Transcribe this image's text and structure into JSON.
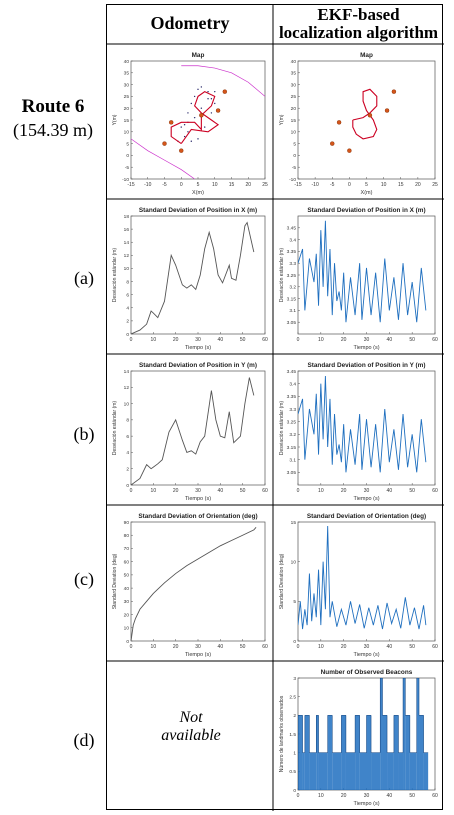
{
  "headers": {
    "col1": "Odometry",
    "col2_line1": "EKF-based",
    "col2_line2": "localization algorithm"
  },
  "route": {
    "title": "Route 6",
    "length": "(154.39 m)"
  },
  "row_labels": [
    "(a)",
    "(b)",
    "(c)",
    "(d)"
  ],
  "not_available": {
    "line1": "Not",
    "line2": "available"
  },
  "colors": {
    "odometry_line": "#555555",
    "ekf_line": "#1f6fbf",
    "path": "#cc0022",
    "beacon": "#d4551a",
    "boundary": "#cc33cc",
    "axes": "#555555"
  },
  "chart_data": [
    {
      "id": "odo-map",
      "type": "scatter",
      "title": "Map",
      "xlabel": "X(m)",
      "ylabel": "Y(m)",
      "xlim": [
        -15,
        25
      ],
      "ylim": [
        -10,
        40
      ],
      "xticks": [
        "-15",
        "-10",
        "-5",
        "0",
        "5",
        "10",
        "15",
        "20",
        "25"
      ],
      "yticks": [
        "-10",
        "-5",
        "0",
        "5",
        "10",
        "15",
        "20",
        "25",
        "30",
        "35",
        "40"
      ],
      "beacons": [
        [
          -3,
          14
        ],
        [
          -5,
          5
        ],
        [
          0,
          2
        ],
        [
          6,
          17
        ],
        [
          11,
          19
        ],
        [
          13,
          27
        ]
      ],
      "path": [
        [
          0,
          5
        ],
        [
          -3,
          8
        ],
        [
          -3,
          12
        ],
        [
          0,
          14
        ],
        [
          4,
          14
        ],
        [
          6,
          11
        ],
        [
          6,
          17
        ],
        [
          9,
          21
        ],
        [
          10,
          25
        ],
        [
          7,
          27
        ],
        [
          5,
          25
        ],
        [
          4,
          21
        ],
        [
          6,
          18
        ],
        [
          9,
          15
        ],
        [
          11,
          13
        ],
        [
          8,
          10
        ],
        [
          3,
          11
        ],
        [
          0,
          5
        ]
      ],
      "dots": [
        [
          1,
          13
        ],
        [
          2,
          18
        ],
        [
          3,
          22
        ],
        [
          4,
          25
        ],
        [
          5,
          28
        ],
        [
          6,
          29
        ],
        [
          8,
          27
        ],
        [
          9,
          24
        ],
        [
          2,
          10
        ],
        [
          1,
          8
        ],
        [
          3,
          6
        ],
        [
          5,
          7
        ],
        [
          7,
          12
        ],
        [
          9,
          18
        ],
        [
          10,
          22
        ],
        [
          -1,
          6
        ],
        [
          0,
          12
        ],
        [
          2,
          14
        ],
        [
          4,
          16
        ],
        [
          6,
          20
        ],
        [
          8,
          24
        ],
        [
          10,
          27
        ]
      ],
      "boundary": [
        [
          [
            -15,
            7
          ],
          [
            -10,
            2
          ],
          [
            -5,
            -2
          ],
          [
            0,
            -6
          ],
          [
            4,
            -10
          ]
        ],
        [
          [
            0,
            38
          ],
          [
            5,
            38
          ],
          [
            10,
            37
          ],
          [
            15,
            35
          ],
          [
            20,
            31
          ],
          [
            25,
            25
          ]
        ]
      ]
    },
    {
      "id": "ekf-map",
      "type": "scatter",
      "title": "Map",
      "xlabel": "X(m)",
      "ylabel": "Y(m)",
      "xlim": [
        -15,
        25
      ],
      "ylim": [
        -10,
        40
      ],
      "xticks": [
        "-15",
        "-10",
        "-5",
        "0",
        "5",
        "10",
        "15",
        "20",
        "25"
      ],
      "yticks": [
        "-10",
        "-5",
        "0",
        "5",
        "10",
        "15",
        "20",
        "25",
        "30",
        "35",
        "40"
      ],
      "beacons": [
        [
          -3,
          14
        ],
        [
          -5,
          5
        ],
        [
          0,
          2
        ],
        [
          6,
          17
        ],
        [
          11,
          19
        ],
        [
          13,
          27
        ]
      ],
      "path": [
        [
          1,
          15
        ],
        [
          4,
          16
        ],
        [
          6,
          18
        ],
        [
          8,
          21
        ],
        [
          8,
          25
        ],
        [
          6,
          28
        ],
        [
          4,
          27
        ],
        [
          4,
          23
        ],
        [
          5,
          19
        ],
        [
          7,
          15
        ],
        [
          8,
          11
        ],
        [
          7,
          8
        ],
        [
          4,
          7
        ],
        [
          2,
          9
        ],
        [
          1,
          12
        ],
        [
          1,
          15
        ]
      ]
    },
    {
      "id": "odo-x",
      "type": "line",
      "title": "Standard Deviation of Position in X (m)",
      "xlabel": "Tiempo (s)",
      "ylabel": "Desviación estándar (m)",
      "xlim": [
        0,
        60
      ],
      "ylim": [
        0,
        18
      ],
      "xticks": [
        "0",
        "10",
        "20",
        "30",
        "40",
        "50",
        "60"
      ],
      "yticks": [
        "0",
        "2",
        "4",
        "6",
        "8",
        "10",
        "12",
        "14",
        "16",
        "18"
      ],
      "x": [
        0,
        4,
        7,
        9,
        10,
        12,
        15,
        18,
        20,
        23,
        25,
        27,
        29,
        31,
        33,
        35,
        37,
        39,
        41,
        44,
        45,
        47,
        49,
        51,
        52,
        54,
        55
      ],
      "values": [
        0,
        0.6,
        1.5,
        3.5,
        3.2,
        2.5,
        5,
        12,
        10.5,
        7.5,
        7,
        7.5,
        6.8,
        9,
        13,
        15.5,
        13,
        9,
        7.8,
        10.5,
        8.5,
        8.2,
        12,
        16.5,
        17,
        14,
        12.5
      ]
    },
    {
      "id": "ekf-x",
      "type": "line",
      "title": "Standard Deviation of Position in X (m)",
      "xlabel": "Tiempo (s)",
      "ylabel": "Desviación estándar (m)",
      "xlim": [
        0,
        60
      ],
      "ylim": [
        3,
        3.5
      ],
      "xticks": [
        "0",
        "10",
        "20",
        "30",
        "40",
        "50",
        "60"
      ],
      "yticks": [
        "3.05",
        "3.1",
        "3.15",
        "3.2",
        "3.25",
        "3.3",
        "3.35",
        "3.4",
        "3.45"
      ],
      "x": [
        0,
        2,
        3,
        5,
        7,
        8,
        9,
        10,
        11,
        12,
        13,
        14,
        15,
        16,
        17,
        18,
        19,
        20,
        21,
        23,
        25,
        27,
        28,
        30,
        32,
        34,
        36,
        38,
        40,
        42,
        44,
        46,
        48,
        50,
        52,
        54,
        56
      ],
      "values": [
        3.3,
        3.36,
        3.1,
        3.32,
        3.22,
        3.34,
        3.12,
        3.44,
        3.2,
        3.48,
        3.16,
        3.36,
        3.08,
        3.3,
        3.14,
        3.18,
        3.1,
        3.26,
        3.05,
        3.24,
        3.08,
        3.3,
        3.06,
        3.28,
        3.08,
        3.26,
        3.05,
        3.32,
        3.1,
        3.24,
        3.06,
        3.3,
        3.08,
        3.22,
        3.05,
        3.28,
        3.1
      ]
    },
    {
      "id": "odo-y",
      "type": "line",
      "title": "Standard Deviation of Position in Y (m)",
      "xlabel": "Tiempo (s)",
      "ylabel": "Desviación estándar (m)",
      "xlim": [
        0,
        60
      ],
      "ylim": [
        0,
        14
      ],
      "xticks": [
        "0",
        "10",
        "20",
        "30",
        "40",
        "50",
        "60"
      ],
      "yticks": [
        "0",
        "2",
        "4",
        "6",
        "8",
        "10",
        "12",
        "14"
      ],
      "x": [
        0,
        4,
        7,
        9,
        10,
        12,
        14,
        17,
        20,
        23,
        25,
        27,
        29,
        31,
        33,
        36,
        38,
        40,
        42,
        44,
        46,
        49,
        51,
        53,
        55
      ],
      "values": [
        0,
        0.8,
        2.5,
        2,
        2.2,
        2.6,
        3.1,
        6.5,
        8,
        5.5,
        4,
        4.2,
        3.8,
        5.3,
        6,
        11.6,
        8,
        6,
        5.8,
        9,
        5.2,
        6,
        10,
        13.2,
        11
      ]
    },
    {
      "id": "ekf-y",
      "type": "line",
      "title": "Standard Deviation of Position in Y (m)",
      "xlabel": "Tiempo (s)",
      "ylabel": "Desviación estándar (m)",
      "xlim": [
        0,
        60
      ],
      "ylim": [
        3,
        3.45
      ],
      "xticks": [
        "0",
        "10",
        "20",
        "30",
        "40",
        "50",
        "60"
      ],
      "yticks": [
        "3.05",
        "3.1",
        "3.15",
        "3.2",
        "3.25",
        "3.3",
        "3.35",
        "3.4",
        "3.45"
      ],
      "x": [
        0,
        2,
        3,
        5,
        7,
        8,
        9,
        10,
        11,
        12,
        13,
        14,
        15,
        16,
        17,
        18,
        19,
        20,
        21,
        23,
        25,
        27,
        28,
        30,
        32,
        34,
        36,
        38,
        40,
        42,
        44,
        46,
        48,
        50,
        52,
        54,
        56
      ],
      "values": [
        3.28,
        3.34,
        3.1,
        3.3,
        3.2,
        3.36,
        3.12,
        3.4,
        3.18,
        3.43,
        3.15,
        3.34,
        3.08,
        3.28,
        3.12,
        3.16,
        3.09,
        3.24,
        3.05,
        3.22,
        3.08,
        3.28,
        3.06,
        3.26,
        3.07,
        3.24,
        3.05,
        3.3,
        3.09,
        3.22,
        3.06,
        3.28,
        3.07,
        3.2,
        3.05,
        3.26,
        3.09
      ]
    },
    {
      "id": "odo-th",
      "type": "line",
      "title": "Standard Deviation of Orientation (deg)",
      "xlabel": "Tiempo (s)",
      "ylabel": "Standard Deviation (deg)",
      "xlim": [
        0,
        60
      ],
      "ylim": [
        0,
        90
      ],
      "xticks": [
        "0",
        "10",
        "20",
        "30",
        "40",
        "50",
        "60"
      ],
      "yticks": [
        "0",
        "10",
        "20",
        "30",
        "40",
        "50",
        "60",
        "70",
        "80",
        "90"
      ],
      "x": [
        0,
        1,
        2,
        4,
        7,
        10,
        15,
        20,
        25,
        30,
        35,
        40,
        45,
        50,
        55,
        56
      ],
      "values": [
        0,
        12,
        17,
        24,
        30,
        36,
        44,
        51,
        57,
        62,
        67,
        72,
        76,
        80,
        84,
        86
      ]
    },
    {
      "id": "ekf-th",
      "type": "line",
      "title": "Standard Deviation of Orientation (deg)",
      "xlabel": "Tiempo (s)",
      "ylabel": "Standard Deviation (deg)",
      "xlim": [
        0,
        60
      ],
      "ylim": [
        0,
        15
      ],
      "xticks": [
        "0",
        "10",
        "20",
        "30",
        "40",
        "50",
        "60"
      ],
      "yticks": [
        "0",
        "5",
        "10",
        "15"
      ],
      "x": [
        0,
        1,
        2,
        3,
        4,
        5,
        6,
        7,
        8,
        9,
        10,
        11,
        12,
        13,
        14,
        15,
        17,
        19,
        21,
        23,
        25,
        27,
        29,
        31,
        33,
        35,
        37,
        39,
        41,
        43,
        45,
        47,
        49,
        51,
        53,
        55,
        56
      ],
      "values": [
        2,
        5,
        1.5,
        4,
        2,
        8.5,
        2.5,
        6,
        3,
        9,
        2,
        10,
        4,
        14.5,
        3,
        5,
        1.8,
        4,
        2,
        5,
        2.2,
        4.6,
        1.6,
        4.2,
        2,
        4.5,
        1.5,
        4.8,
        2.2,
        4,
        1.6,
        5.5,
        2,
        4.2,
        1.5,
        4.5,
        2
      ]
    },
    {
      "id": "ekf-beacons",
      "type": "bar",
      "title": "Number of Observed Beacons",
      "xlabel": "Tiempo (s)",
      "ylabel": "Número de landmarks observados",
      "xlim": [
        0,
        60
      ],
      "ylim": [
        0,
        3
      ],
      "xticks": [
        "0",
        "10",
        "20",
        "30",
        "40",
        "50",
        "60"
      ],
      "yticks": [
        "0",
        "0.5",
        "1",
        "1.5",
        "2",
        "2.5",
        "3"
      ],
      "segments": [
        [
          0,
          2,
          2
        ],
        [
          2,
          3,
          1
        ],
        [
          3,
          5,
          2
        ],
        [
          5,
          8,
          1
        ],
        [
          8,
          9,
          2
        ],
        [
          9,
          13,
          1
        ],
        [
          13,
          15,
          2
        ],
        [
          15,
          19,
          1
        ],
        [
          19,
          21,
          2
        ],
        [
          21,
          25,
          1
        ],
        [
          25,
          27,
          2
        ],
        [
          27,
          30,
          1
        ],
        [
          30,
          32,
          2
        ],
        [
          32,
          36,
          1
        ],
        [
          36,
          37,
          3
        ],
        [
          37,
          39,
          2
        ],
        [
          39,
          42,
          1
        ],
        [
          42,
          44,
          2
        ],
        [
          44,
          46,
          1
        ],
        [
          46,
          47,
          3
        ],
        [
          47,
          49,
          2
        ],
        [
          49,
          52,
          1
        ],
        [
          52,
          53,
          3
        ],
        [
          53,
          55,
          2
        ],
        [
          55,
          57,
          1
        ]
      ]
    }
  ]
}
